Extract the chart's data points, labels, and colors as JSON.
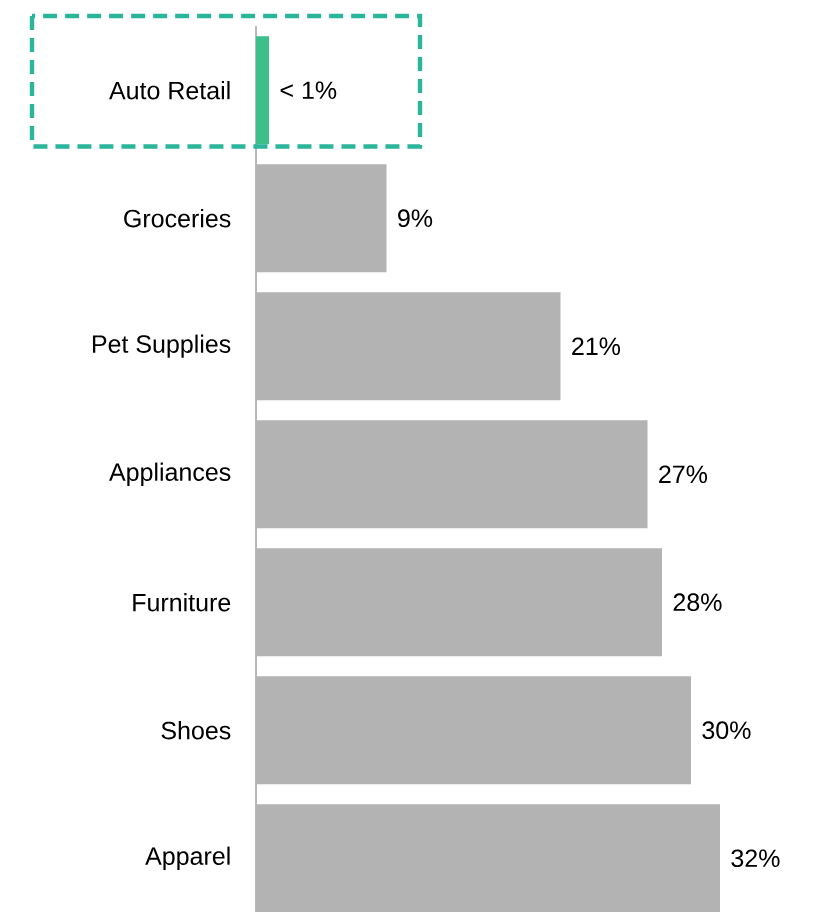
{
  "chart_data": {
    "type": "bar",
    "orientation": "horizontal",
    "categories": [
      "Auto Retail",
      "Groceries",
      "Pet Supplies",
      "Appliances",
      "Furniture",
      "Shoes",
      "Apparel"
    ],
    "values": [
      0.9,
      9,
      21,
      27,
      28,
      30,
      32
    ],
    "value_labels": [
      "< 1%",
      "9%",
      "21%",
      "27%",
      "28%",
      "30%",
      "32%"
    ],
    "colors": [
      "#3dbf8c",
      "#b3b3b3",
      "#b3b3b3",
      "#b3b3b3",
      "#b3b3b3",
      "#b3b3b3",
      "#b3b3b3"
    ]
  }
}
